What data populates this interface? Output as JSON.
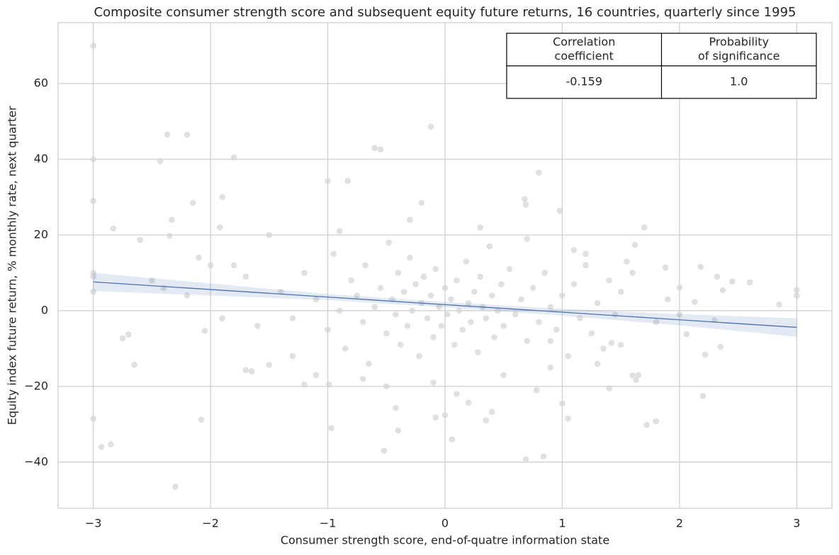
{
  "chart_data": {
    "type": "scatter",
    "title": "Composite consumer strength score and subsequent equity future returns, 16 countries, quarterly since 1995",
    "x_label": "Consumer strength score, end-of-quatre information state",
    "y_label": "Equity index future return, % monthly rate, next quarter",
    "xlim": [
      -3.3,
      3.3
    ],
    "ylim": [
      -52.2,
      76.1
    ],
    "xticks": [
      {
        "value": -3,
        "label": "−3"
      },
      {
        "value": -2,
        "label": "−2"
      },
      {
        "value": -1,
        "label": "−1"
      },
      0,
      1,
      2,
      3
    ],
    "yticks": [
      {
        "value": -40,
        "label": "−40"
      },
      {
        "value": -20,
        "label": "−20"
      },
      0,
      20,
      40,
      60
    ],
    "grid": true,
    "color": "#d3d3d3",
    "x": [
      -3,
      -3,
      -3,
      -3,
      -3,
      -3,
      -3,
      -2.93,
      -2.85,
      -2.83,
      -2.75,
      -2.7,
      -2.65,
      -2.6,
      -2.5,
      -2.43,
      -2.4,
      -2.37,
      -2.35,
      -2.33,
      -2.3,
      -2.2,
      -2.15,
      -2.08,
      -2.05,
      -1.9,
      -1.92,
      -1.8,
      -1.7,
      -1.65,
      -1.5,
      -1.2,
      -1,
      -0.99,
      -0.97,
      -0.83,
      -0.6,
      -0.55,
      -0.52,
      -0.42,
      -0.4,
      -0.2,
      -0.12,
      -0.08,
      0,
      0.06,
      0.2,
      0.35,
      0.4,
      0.69,
      0.68,
      0.69,
      0.78,
      0.8,
      0.84,
      0.98,
      1,
      1.05,
      1.4,
      1.55,
      1.62,
      1.7,
      1.72,
      1.8,
      1.88,
      2,
      2.06,
      2.13,
      2.18,
      2.2,
      2.22,
      2.3,
      2.32,
      2.35,
      2.37,
      2.45,
      2.6,
      2.85,
      3,
      3,
      1.42,
      1.6,
      1.63,
      1.65,
      0.9,
      -1.4,
      -1.3,
      -1.2,
      -1.1,
      -1,
      -0.95,
      -0.9,
      -0.85,
      -0.8,
      -0.75,
      -0.7,
      -0.68,
      -0.65,
      -0.6,
      -0.55,
      -0.5,
      -0.48,
      -0.45,
      -0.42,
      -0.4,
      -0.38,
      -0.35,
      -0.32,
      -0.3,
      -0.28,
      -0.25,
      -0.22,
      -0.2,
      -0.18,
      -0.15,
      -0.12,
      -0.1,
      -0.08,
      -0.05,
      -0.03,
      0,
      0.02,
      0.05,
      0.08,
      0.1,
      0.12,
      0.15,
      0.18,
      0.2,
      0.22,
      0.25,
      0.28,
      0.3,
      0.32,
      0.35,
      0.38,
      0.4,
      0.42,
      0.45,
      0.48,
      0.5,
      0.55,
      0.6,
      0.65,
      0.7,
      0.75,
      0.8,
      0.85,
      0.9,
      0.95,
      1,
      1.05,
      1.1,
      1.15,
      1.2,
      1.25,
      1.3,
      1.35,
      1.4,
      1.45,
      1.5,
      -1.8,
      -1.6,
      -1.7,
      -2,
      -1.9,
      -2.2,
      -2.1,
      -1.5,
      -1.3,
      -1.1,
      -0.9,
      -0.7,
      -0.5,
      -0.3,
      -0.1,
      0.1,
      0.3,
      0.5,
      0.7,
      0.9,
      1.1,
      1.3,
      1.6,
      1.8,
      1.9,
      2,
      1.2,
      1.5
    ],
    "values": [
      70,
      40,
      29,
      -28.5,
      10,
      9,
      5,
      -36,
      -35.3,
      21.7,
      -7.3,
      -6.3,
      -14.3,
      18.7,
      8,
      39.5,
      6,
      46.5,
      19.8,
      24,
      -46.5,
      46.5,
      28.5,
      -28.8,
      -5.3,
      30,
      22,
      40.5,
      -15.7,
      -16,
      -14.3,
      -19.5,
      34.3,
      -19.5,
      -31,
      34.3,
      43,
      42.6,
      -37,
      -25.7,
      -31.7,
      28.5,
      48.6,
      -28.2,
      -27.6,
      -34,
      -24.3,
      -29,
      -26.7,
      -39.3,
      29.5,
      28,
      -21,
      36.5,
      -38.5,
      26.4,
      -24.5,
      -28.5,
      -20.5,
      13,
      17.4,
      22,
      -30.2,
      -29.2,
      11.4,
      6.1,
      -6.2,
      2.3,
      11.6,
      -22.5,
      -11.6,
      -2.5,
      9,
      -9.5,
      5.4,
      7.7,
      7.5,
      1.6,
      5.5,
      4,
      -8.5,
      -17.1,
      -18.3,
      -17,
      -8,
      5,
      -2,
      10,
      3,
      -5,
      15,
      0,
      -10,
      8,
      4,
      -3,
      12,
      -14,
      1,
      6,
      -6,
      18,
      3,
      -1,
      10,
      -9,
      5,
      -4,
      14,
      0,
      7,
      -12,
      2,
      9,
      -2,
      4,
      -7,
      11,
      1,
      -4,
      6,
      -1,
      3,
      -9,
      8,
      0,
      -5,
      13,
      2,
      -3,
      5,
      -11,
      9,
      1,
      -2,
      17,
      4,
      -7,
      0,
      7,
      -4,
      11,
      -1,
      3,
      -8,
      6,
      -3,
      10,
      1,
      -5,
      4,
      -12,
      7,
      -2,
      12,
      -6,
      2,
      -10,
      8,
      -1,
      5,
      12,
      -4,
      9,
      12,
      -2,
      4,
      14,
      20,
      -12,
      -17,
      21,
      -18,
      -20,
      24,
      -19,
      -22,
      22,
      -17,
      19,
      -15,
      16,
      -14,
      10,
      -3,
      3,
      -1,
      15,
      -9
    ],
    "fit": {
      "color": "#4c72b0",
      "x": [
        -3,
        -2,
        -1,
        0,
        1,
        2,
        3
      ],
      "y": [
        7.6,
        5.6,
        3.6,
        1.6,
        -0.4,
        -2.4,
        -4.4
      ],
      "ci_lower": [
        5.2,
        4.0,
        2.8,
        0.9,
        -1.3,
        -3.9,
        -6.9
      ],
      "ci_upper": [
        10,
        7.2,
        4.4,
        2.3,
        0.5,
        -0.9,
        -2.0
      ]
    },
    "table": {
      "columns": [
        [
          "Correlation",
          "coefficient"
        ],
        [
          "Probability",
          "of significance"
        ]
      ],
      "rows": [
        [
          "-0.159",
          "1.0"
        ]
      ]
    }
  }
}
